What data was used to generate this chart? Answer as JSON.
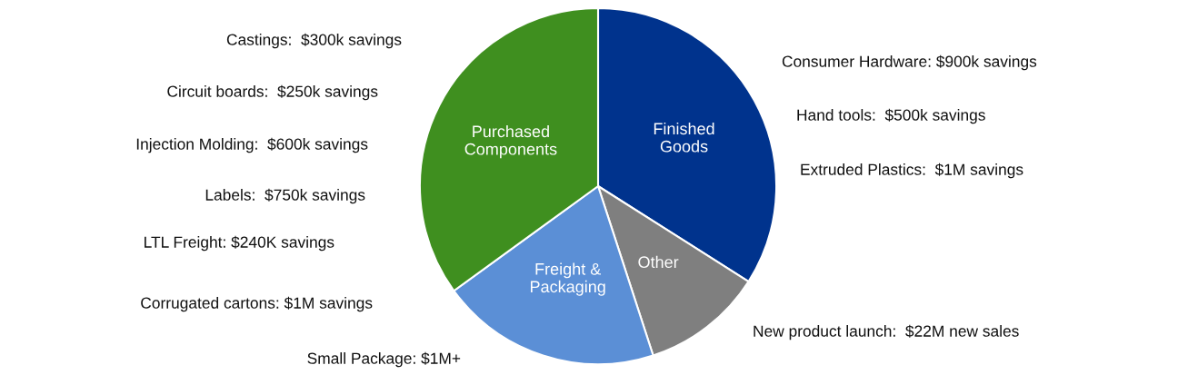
{
  "chart_data": {
    "type": "pie",
    "categories": [
      "Finished\nGoods",
      "Other",
      "Freight &\nPackaging",
      "Purchased\nComponents"
    ],
    "values": [
      34,
      11,
      20,
      35
    ],
    "colors": [
      "#00338d",
      "#7f7f7f",
      "#5b8fd6",
      "#3f8f1f"
    ],
    "annotations": [
      "Castings:  $300k savings",
      "Circuit boards:  $250k savings",
      "Injection Molding:  $600k savings",
      "Labels:  $750k savings",
      "LTL Freight: $240K savings",
      "Corrugated cartons: $1M savings",
      "Small Package: $1M+",
      "Consumer Hardware: $900k savings",
      "Hand tools:  $500k savings",
      "Extruded Plastics:  $1M savings",
      "New product launch:  $22M new sales"
    ]
  }
}
